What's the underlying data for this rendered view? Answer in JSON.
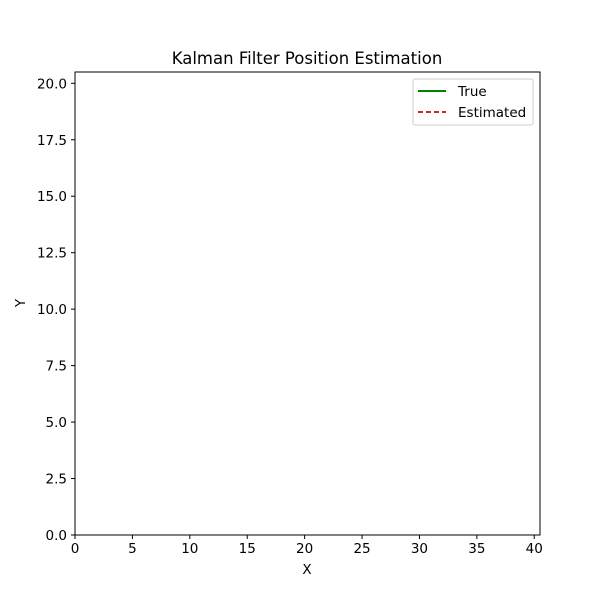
{
  "chart_data": {
    "type": "line",
    "title": "Kalman Filter Position Estimation",
    "xlabel": "X",
    "ylabel": "Y",
    "xlim": [
      0,
      40.5
    ],
    "ylim": [
      0,
      20.5
    ],
    "x_ticks": [
      0,
      5,
      10,
      15,
      20,
      25,
      30,
      35,
      40
    ],
    "x_tick_labels": [
      "0",
      "5",
      "10",
      "15",
      "20",
      "25",
      "30",
      "35",
      "40"
    ],
    "y_ticks": [
      0,
      2.5,
      5,
      7.5,
      10,
      12.5,
      15,
      17.5,
      20
    ],
    "y_tick_labels": [
      "0.0",
      "2.5",
      "5.0",
      "7.5",
      "10.0",
      "12.5",
      "15.0",
      "17.5",
      "20.0"
    ],
    "grid": false,
    "legend_position": "top-right",
    "series": [
      {
        "name": "True",
        "color": "#008000",
        "line_style": "solid",
        "x": [],
        "y": []
      },
      {
        "name": "Estimated",
        "color": "#d62728",
        "line_style": "dashed",
        "x": [],
        "y": []
      }
    ]
  }
}
